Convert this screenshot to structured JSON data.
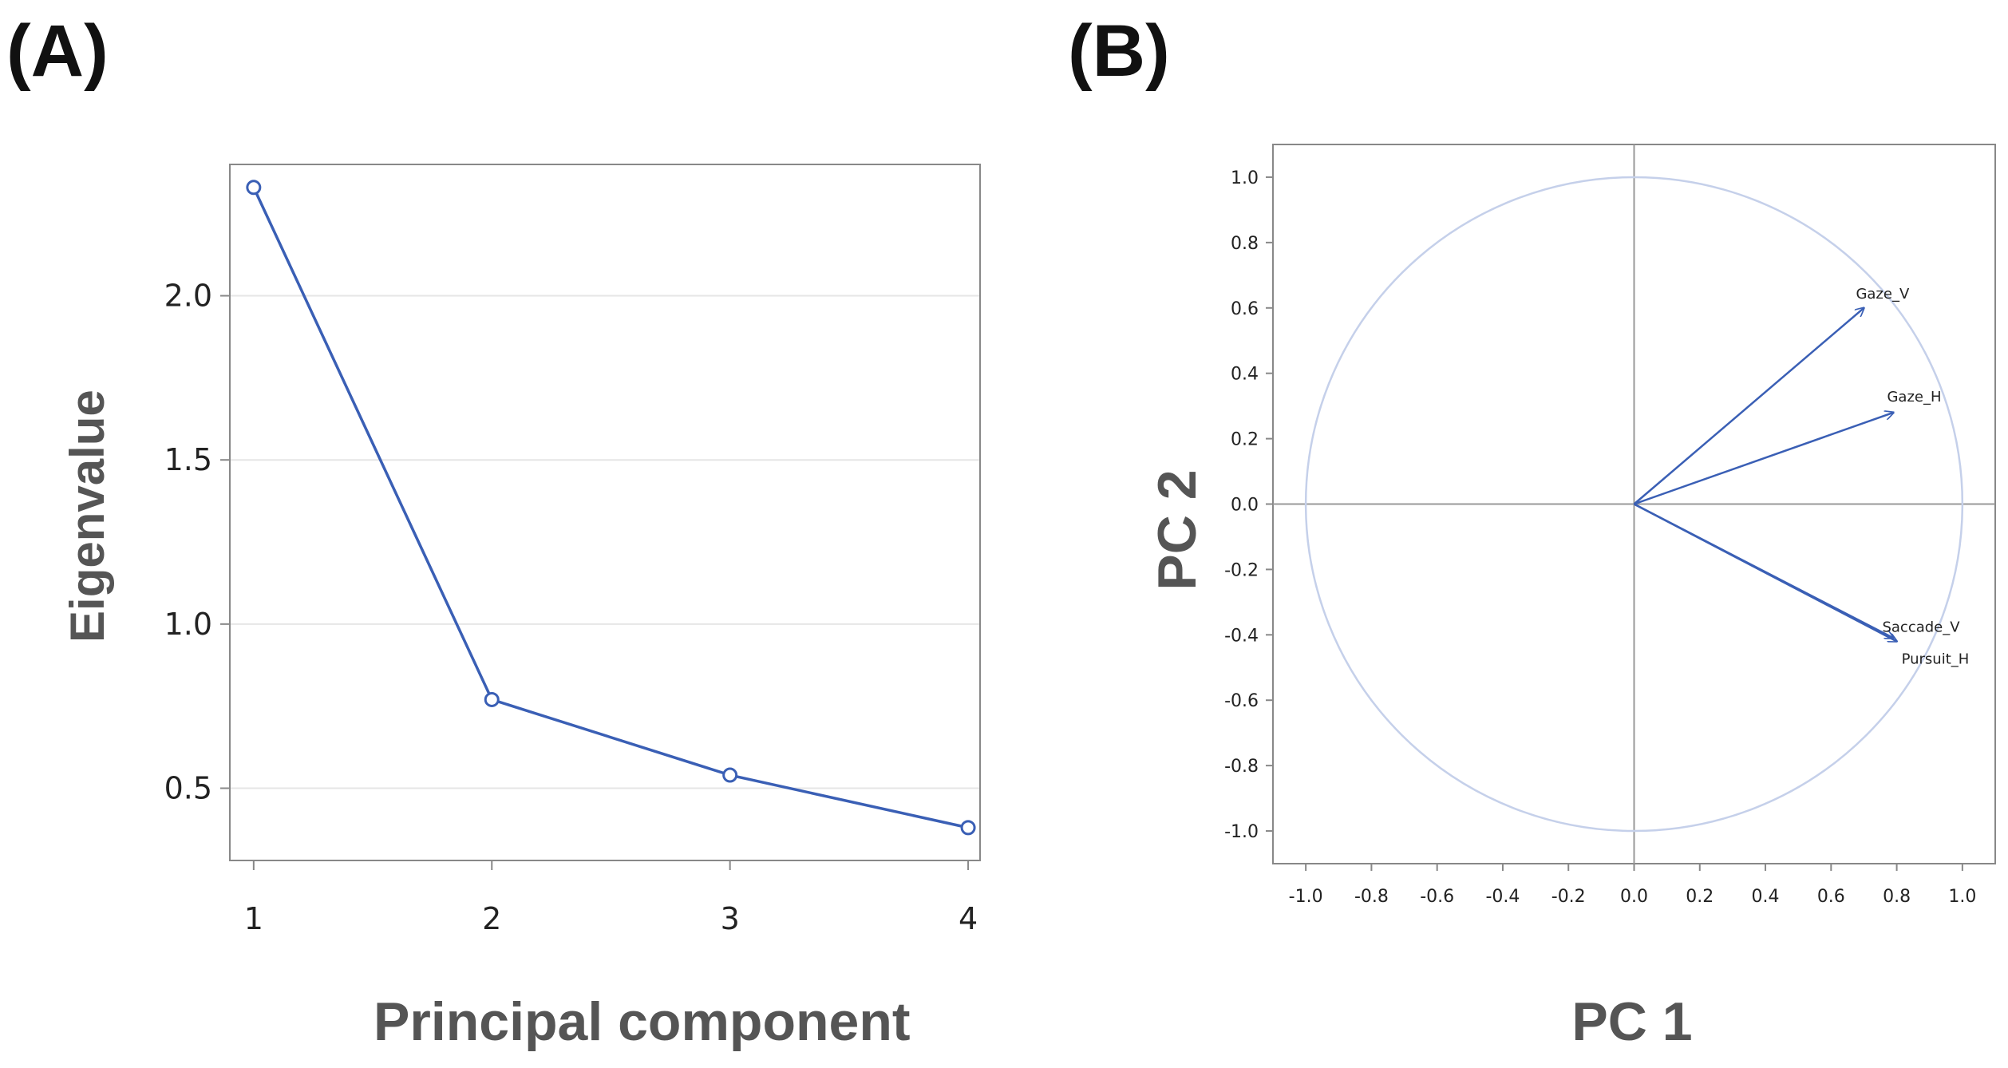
{
  "panels": {
    "a": {
      "label": "(A)",
      "xlabel": "Principal component",
      "ylabel": "Eigenvalue"
    },
    "b": {
      "label": "(B)",
      "xlabel": "PC 1",
      "ylabel": "PC 2"
    }
  },
  "colors": {
    "series": "#3a5fb5",
    "circle": "#c5d0ea",
    "grid": "#e6e6e6",
    "frame": "#888888",
    "axisline": "#999999"
  },
  "chart_data": [
    {
      "type": "line",
      "x": [
        1,
        2,
        3,
        4
      ],
      "values": [
        2.33,
        0.77,
        0.54,
        0.38
      ],
      "xlabel": "Principal component",
      "ylabel": "Eigenvalue",
      "xlim": [
        0.9,
        4.05
      ],
      "ylim": [
        0.28,
        2.4
      ],
      "xticks": [
        "1",
        "2",
        "3",
        "4"
      ],
      "yticks": [
        "0.5",
        "1.0",
        "1.5",
        "2.0"
      ],
      "grid": "horizontal"
    },
    {
      "type": "scatter",
      "variant": "loading-plot",
      "xlabel": "PC 1",
      "ylabel": "PC 2",
      "xlim": [
        -1.1,
        1.1
      ],
      "ylim": [
        -1.1,
        1.1
      ],
      "xticks": [
        "-1.0",
        "-0.8",
        "-0.6",
        "-0.4",
        "-0.2",
        "0.0",
        "0.2",
        "0.4",
        "0.6",
        "0.8",
        "1.0"
      ],
      "yticks": [
        "-1.0",
        "-0.8",
        "-0.6",
        "-0.4",
        "-0.2",
        "0.0",
        "0.2",
        "0.4",
        "0.6",
        "0.8",
        "1.0"
      ],
      "unit_circle": true,
      "vectors": [
        {
          "name": "Gaze_V",
          "x": 0.7,
          "y": 0.6
        },
        {
          "name": "Gaze_H",
          "x": 0.79,
          "y": 0.28
        },
        {
          "name": "Saccade_V",
          "x": 0.79,
          "y": -0.41
        },
        {
          "name": "Pursuit_H",
          "x": 0.8,
          "y": -0.42
        }
      ]
    }
  ]
}
